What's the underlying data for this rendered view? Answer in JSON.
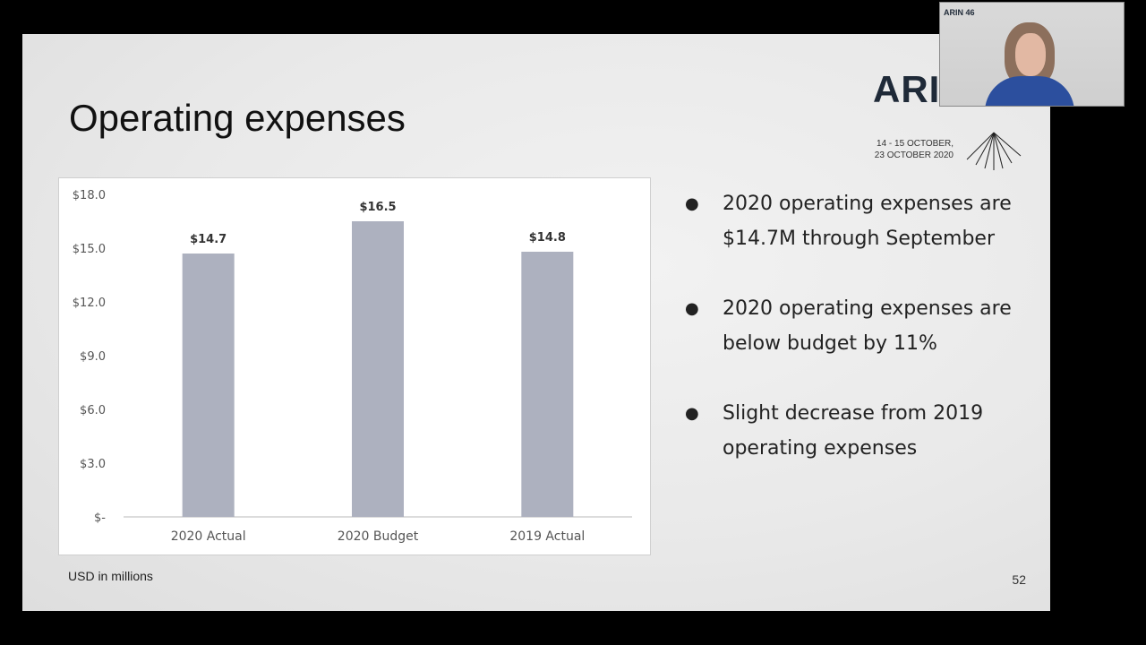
{
  "slide": {
    "title": "Operating expenses",
    "footnote": "USD in millions",
    "page_number": "52"
  },
  "logo": {
    "text": "ARI",
    "dates_line1": "14 - 15 OCTOBER,",
    "dates_line2": "23 OCTOBER 2020"
  },
  "webcam": {
    "logo_text": "ARIN 46"
  },
  "bullets": [
    "2020 operating expenses are $14.7M through September",
    "2020 operating expenses are below budget by 11%",
    "Slight decrease from 2019 operating expenses"
  ],
  "bullet_symbol": "●",
  "chart_data": {
    "type": "bar",
    "categories": [
      "2020 Actual",
      "2020 Budget",
      "2019 Actual"
    ],
    "values": [
      14.7,
      16.5,
      14.8
    ],
    "data_labels": [
      "$14.7",
      "$16.5",
      "$14.8"
    ],
    "y_ticks": [
      0,
      3,
      6,
      9,
      12,
      15,
      18
    ],
    "y_tick_labels": [
      "$-",
      "$3.0",
      "$6.0",
      "$9.0",
      "$12.0",
      "$15.0",
      "$18.0"
    ],
    "ylim": [
      0,
      18
    ],
    "grid": false,
    "bar_color": "#adb1bf",
    "title": "",
    "xlabel": "",
    "ylabel": ""
  }
}
